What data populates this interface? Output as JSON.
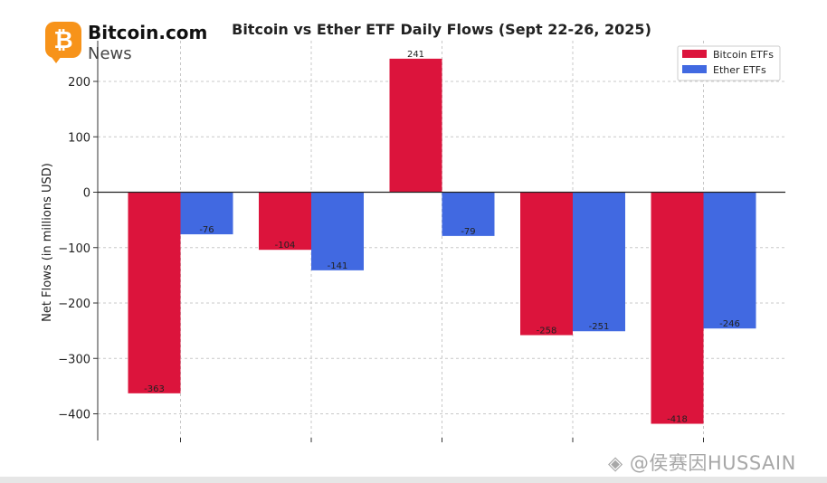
{
  "brand": {
    "name": "Bitcoin.com",
    "sub": "News",
    "mark": "₿"
  },
  "watermark": "◈ @侯赛因HUSSAIN",
  "chart_data": {
    "type": "bar",
    "title": "Bitcoin vs Ether ETF Daily Flows (Sept 22-26, 2025)",
    "xlabel": "",
    "ylabel": "Net Flows (in millions USD)",
    "categories": [
      "",
      "",
      "",
      "",
      ""
    ],
    "series": [
      {
        "name": "Bitcoin ETFs",
        "color": "#dc143c",
        "values": [
          -363,
          -104,
          241,
          -258,
          -418
        ],
        "labels": [
          "-363",
          "-104",
          "241",
          "-258",
          "-418"
        ]
      },
      {
        "name": "Ether ETFs",
        "color": "#4169e1",
        "values": [
          -76,
          -141,
          -79,
          -251,
          -246
        ],
        "labels": [
          "-76",
          "-141",
          "-79",
          "-251",
          "-246"
        ]
      }
    ],
    "yticks": [
      200,
      100,
      0,
      -100,
      -200,
      -300,
      -400
    ],
    "ytick_labels": [
      "200",
      "100",
      "0",
      "−100",
      "−200",
      "−300",
      "−400"
    ],
    "ylim": [
      -445,
      270
    ],
    "grid": true,
    "legend_position": "top-right"
  }
}
